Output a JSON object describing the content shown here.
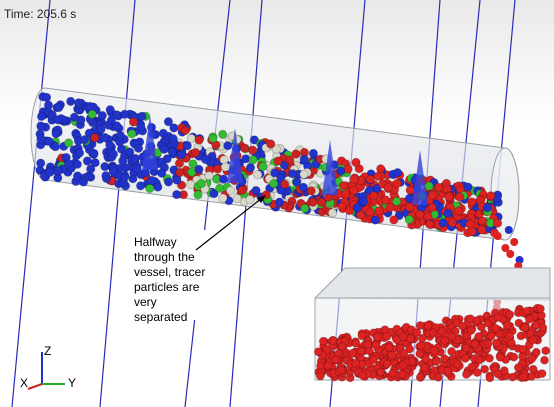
{
  "header": {
    "time": "Time: 205.6 s"
  },
  "annotation": {
    "lines": [
      "Halfway",
      "through the",
      "vessel, tracer",
      "particles are",
      "very",
      "separated"
    ]
  },
  "axes": {
    "z": "Z",
    "x": "X",
    "y": "Y"
  }
}
